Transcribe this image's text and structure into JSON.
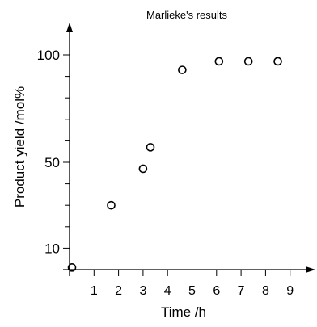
{
  "chart_data": {
    "type": "scatter",
    "title": "Marlieke's results",
    "xlabel": "Time /h",
    "ylabel": "Product yield /mol%",
    "x_ticks": [
      1,
      2,
      3,
      4,
      5,
      6,
      7,
      8,
      9
    ],
    "y_tick_labels": [
      10,
      50,
      100
    ],
    "y_minor_ticks": [
      20,
      30,
      40,
      60,
      70,
      80,
      90
    ],
    "xlim": [
      0,
      9.5
    ],
    "ylim": [
      0,
      100
    ],
    "grid": false,
    "points": [
      {
        "x": 0.1,
        "y": 1
      },
      {
        "x": 1.7,
        "y": 30
      },
      {
        "x": 3.0,
        "y": 47
      },
      {
        "x": 3.3,
        "y": 57
      },
      {
        "x": 4.6,
        "y": 93
      },
      {
        "x": 6.1,
        "y": 97
      },
      {
        "x": 7.3,
        "y": 97
      },
      {
        "x": 8.5,
        "y": 97
      }
    ]
  }
}
